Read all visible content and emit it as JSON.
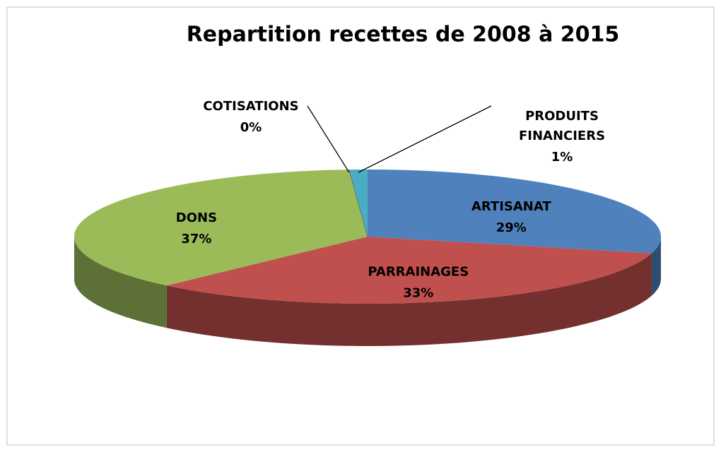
{
  "chart_data": {
    "type": "pie",
    "title": "Repartition recettes de 2008 à 2015",
    "categories": [
      "ARTISANAT",
      "PARRAINAGES",
      "DONS",
      "COTISATIONS",
      "PRODUITS FINANCIERS"
    ],
    "values": [
      29,
      33,
      37,
      0,
      1
    ],
    "value_labels": [
      "29%",
      "33%",
      "37%",
      "0%",
      "1%"
    ],
    "colors": [
      "#4f81bd",
      "#c0504d",
      "#9bbb59",
      "#8064a2",
      "#4bacc6"
    ]
  }
}
